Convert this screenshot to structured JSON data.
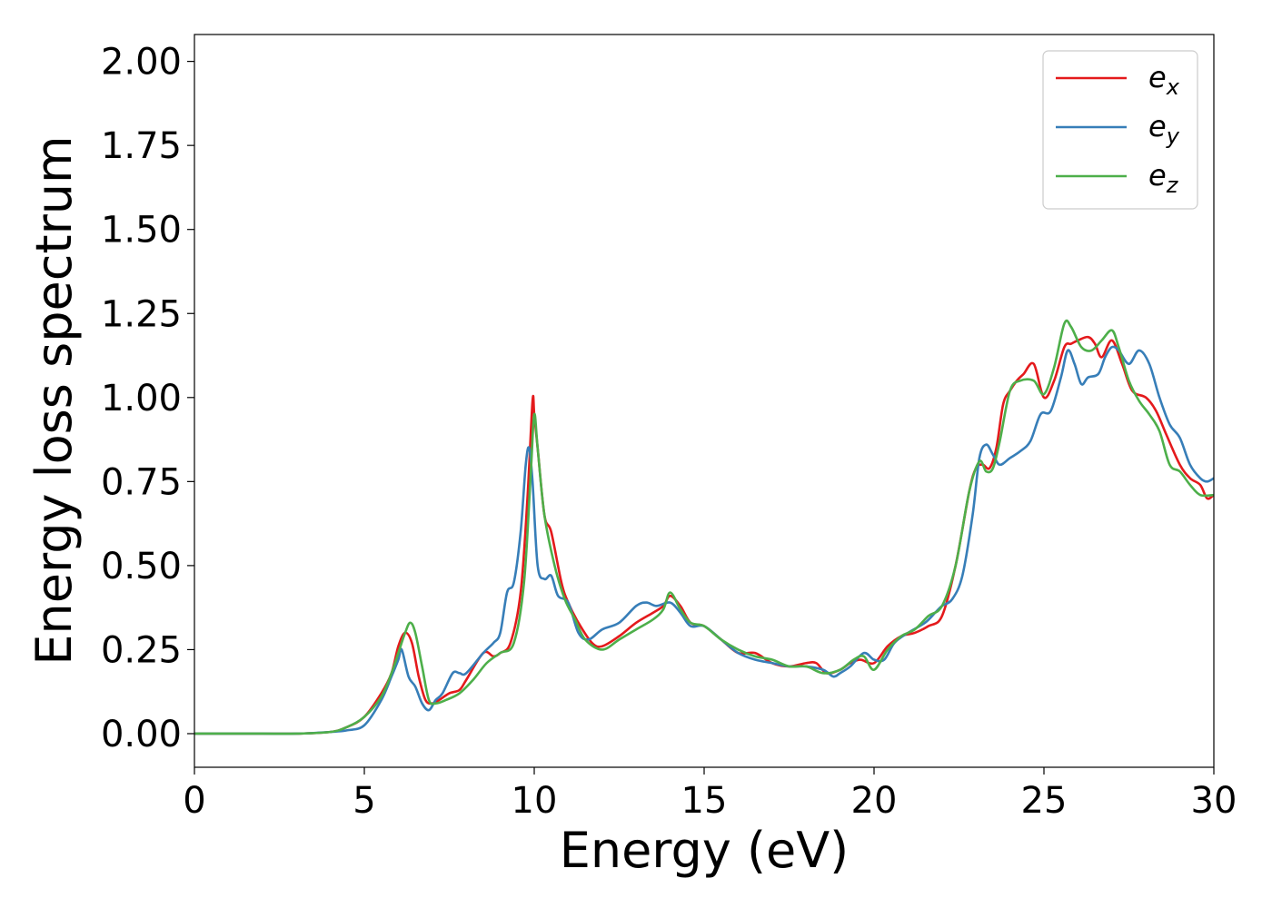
{
  "chart_data": {
    "type": "line",
    "xlabel": "Energy (eV)",
    "ylabel": "Energy loss spectrum",
    "xlim": [
      0,
      30
    ],
    "ylim": [
      -0.1,
      2.08
    ],
    "xticks": [
      0,
      5,
      10,
      15,
      20,
      25,
      30
    ],
    "yticks": [
      "0.00",
      "0.25",
      "0.50",
      "0.75",
      "1.00",
      "1.25",
      "1.50",
      "1.75",
      "2.00"
    ],
    "grid": false,
    "legend_position": "top-right",
    "series": [
      {
        "name": "e_x",
        "label_main": "e",
        "label_sub": "x",
        "color": "#e41a1c",
        "x": [
          0,
          1,
          2,
          3,
          4,
          4.5,
          5,
          5.5,
          5.8,
          6.0,
          6.2,
          6.4,
          6.6,
          6.8,
          7.0,
          7.2,
          7.5,
          7.8,
          8.0,
          8.5,
          8.8,
          9.0,
          9.3,
          9.6,
          9.8,
          9.95,
          10.0,
          10.1,
          10.3,
          10.5,
          10.8,
          11.0,
          11.3,
          11.7,
          12.0,
          12.5,
          13.0,
          13.5,
          13.8,
          14.0,
          14.3,
          14.6,
          15.0,
          15.5,
          16.0,
          16.5,
          17.0,
          17.5,
          18.0,
          18.3,
          18.6,
          19.0,
          19.3,
          19.6,
          20.0,
          20.4,
          20.8,
          21.2,
          21.6,
          22.0,
          22.4,
          22.8,
          23.0,
          23.2,
          23.4,
          23.6,
          23.8,
          24.0,
          24.2,
          24.4,
          24.7,
          25.0,
          25.3,
          25.6,
          25.8,
          26.0,
          26.3,
          26.5,
          26.7,
          27.0,
          27.3,
          27.6,
          28.0,
          28.3,
          28.6,
          29.0,
          29.3,
          29.6,
          29.8,
          30
        ],
        "y": [
          0.0,
          0.0,
          0.0,
          0.0,
          0.005,
          0.02,
          0.05,
          0.12,
          0.18,
          0.26,
          0.3,
          0.27,
          0.17,
          0.1,
          0.09,
          0.1,
          0.12,
          0.13,
          0.16,
          0.24,
          0.23,
          0.24,
          0.27,
          0.42,
          0.7,
          0.99,
          0.95,
          0.85,
          0.65,
          0.6,
          0.45,
          0.39,
          0.33,
          0.27,
          0.26,
          0.29,
          0.33,
          0.36,
          0.38,
          0.41,
          0.38,
          0.33,
          0.32,
          0.28,
          0.24,
          0.24,
          0.21,
          0.2,
          0.21,
          0.21,
          0.18,
          0.19,
          0.21,
          0.22,
          0.21,
          0.26,
          0.29,
          0.3,
          0.32,
          0.35,
          0.5,
          0.72,
          0.79,
          0.8,
          0.79,
          0.85,
          0.98,
          1.02,
          1.05,
          1.07,
          1.1,
          1.0,
          1.05,
          1.15,
          1.16,
          1.17,
          1.18,
          1.16,
          1.12,
          1.17,
          1.1,
          1.02,
          1.0,
          0.96,
          0.89,
          0.8,
          0.76,
          0.74,
          0.7,
          0.71
        ]
      },
      {
        "name": "e_y",
        "label_main": "e",
        "label_sub": "y",
        "color": "#377eb8",
        "x": [
          0,
          1,
          2,
          3,
          4,
          4.5,
          5,
          5.5,
          5.8,
          6.0,
          6.1,
          6.3,
          6.5,
          6.7,
          6.9,
          7.1,
          7.3,
          7.6,
          7.8,
          8.0,
          8.5,
          8.8,
          9.0,
          9.2,
          9.4,
          9.6,
          9.75,
          9.85,
          9.95,
          10.1,
          10.3,
          10.5,
          10.7,
          11.0,
          11.3,
          11.6,
          12.0,
          12.5,
          13.0,
          13.3,
          13.6,
          14.0,
          14.3,
          14.6,
          15.0,
          15.5,
          16.0,
          16.5,
          17.0,
          17.5,
          18.0,
          18.5,
          18.8,
          19.0,
          19.3,
          19.7,
          20.0,
          20.3,
          20.6,
          21.0,
          21.5,
          21.8,
          22.0,
          22.3,
          22.6,
          22.9,
          23.1,
          23.3,
          23.5,
          23.7,
          24.0,
          24.3,
          24.6,
          24.9,
          25.2,
          25.5,
          25.7,
          25.9,
          26.1,
          26.3,
          26.6,
          26.8,
          27.0,
          27.2,
          27.5,
          27.8,
          28.1,
          28.4,
          28.7,
          29.0,
          29.3,
          29.6,
          29.8,
          30
        ],
        "y": [
          0.0,
          0.0,
          0.0,
          0.0,
          0.005,
          0.01,
          0.025,
          0.1,
          0.17,
          0.22,
          0.25,
          0.17,
          0.14,
          0.09,
          0.07,
          0.1,
          0.12,
          0.18,
          0.18,
          0.18,
          0.24,
          0.27,
          0.3,
          0.42,
          0.45,
          0.6,
          0.8,
          0.85,
          0.75,
          0.5,
          0.46,
          0.47,
          0.41,
          0.39,
          0.3,
          0.28,
          0.31,
          0.33,
          0.38,
          0.39,
          0.38,
          0.39,
          0.36,
          0.32,
          0.32,
          0.28,
          0.24,
          0.22,
          0.21,
          0.2,
          0.2,
          0.19,
          0.17,
          0.18,
          0.2,
          0.24,
          0.22,
          0.22,
          0.27,
          0.3,
          0.33,
          0.36,
          0.38,
          0.4,
          0.47,
          0.65,
          0.82,
          0.86,
          0.83,
          0.8,
          0.82,
          0.84,
          0.87,
          0.95,
          0.96,
          1.06,
          1.14,
          1.1,
          1.04,
          1.06,
          1.07,
          1.12,
          1.15,
          1.14,
          1.1,
          1.14,
          1.1,
          1.0,
          0.92,
          0.88,
          0.8,
          0.76,
          0.75,
          0.76
        ]
      },
      {
        "name": "e_z",
        "label_main": "e",
        "label_sub": "z",
        "color": "#4daf4a",
        "x": [
          0,
          1,
          2,
          3,
          4,
          4.5,
          5,
          5.5,
          5.8,
          6.0,
          6.2,
          6.35,
          6.5,
          6.7,
          6.9,
          7.1,
          7.4,
          7.8,
          8.2,
          8.6,
          9.0,
          9.4,
          9.7,
          9.9,
          10.0,
          10.1,
          10.3,
          10.6,
          10.9,
          11.2,
          11.5,
          12.0,
          12.5,
          13.0,
          13.5,
          13.8,
          14.0,
          14.3,
          14.6,
          15.0,
          15.5,
          16.0,
          16.5,
          17.0,
          17.5,
          18.0,
          18.5,
          19.0,
          19.4,
          19.7,
          20.0,
          20.4,
          20.8,
          21.2,
          21.6,
          22.0,
          22.4,
          22.8,
          23.1,
          23.3,
          23.5,
          23.7,
          24.0,
          24.3,
          24.7,
          25.0,
          25.3,
          25.6,
          25.8,
          26.1,
          26.4,
          26.7,
          27.0,
          27.2,
          27.5,
          27.8,
          28.1,
          28.4,
          28.7,
          29.0,
          29.3,
          29.6,
          30
        ],
        "y": [
          0.0,
          0.0,
          0.0,
          0.0,
          0.005,
          0.02,
          0.05,
          0.11,
          0.18,
          0.24,
          0.3,
          0.33,
          0.3,
          0.2,
          0.1,
          0.09,
          0.1,
          0.12,
          0.16,
          0.21,
          0.24,
          0.27,
          0.45,
          0.78,
          0.95,
          0.85,
          0.65,
          0.5,
          0.4,
          0.34,
          0.28,
          0.25,
          0.28,
          0.31,
          0.34,
          0.37,
          0.42,
          0.37,
          0.33,
          0.32,
          0.28,
          0.25,
          0.23,
          0.22,
          0.2,
          0.2,
          0.18,
          0.19,
          0.22,
          0.23,
          0.19,
          0.25,
          0.29,
          0.31,
          0.35,
          0.38,
          0.5,
          0.72,
          0.81,
          0.78,
          0.79,
          0.87,
          1.02,
          1.05,
          1.05,
          1.01,
          1.09,
          1.22,
          1.21,
          1.15,
          1.14,
          1.17,
          1.2,
          1.15,
          1.05,
          0.99,
          0.95,
          0.9,
          0.8,
          0.78,
          0.74,
          0.71,
          0.71
        ]
      }
    ]
  }
}
